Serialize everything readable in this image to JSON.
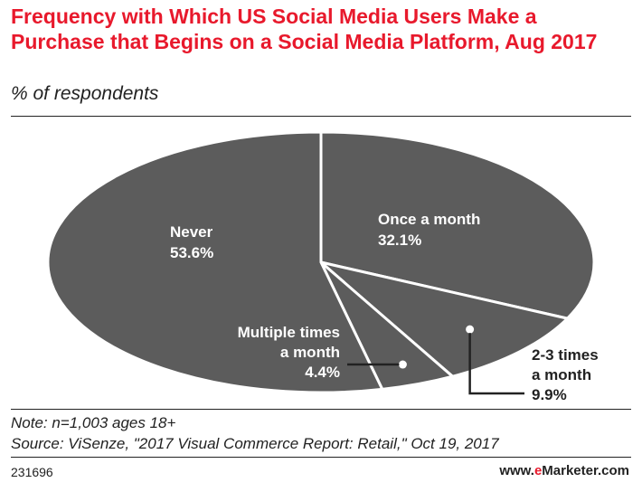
{
  "header": {
    "title": "Frequency with Which US Social Media Users Make a Purchase that Begins on a Social Media Platform, Aug 2017",
    "subtitle": "% of respondents"
  },
  "chart_data": {
    "type": "pie",
    "title": "Frequency with Which US Social Media Users Make a Purchase that Begins on a Social Media Platform, Aug 2017",
    "unit": "% of respondents",
    "slices": [
      {
        "label": "Once a month",
        "value": 32.1,
        "value_text": "32.1%"
      },
      {
        "label": "2-3 times a month",
        "value": 9.9,
        "value_text": "9.9%"
      },
      {
        "label": "Multiple times a month",
        "value": 4.4,
        "value_text": "4.4%"
      },
      {
        "label": "Never",
        "value": 53.6,
        "value_text": "53.6%"
      }
    ],
    "colors": {
      "fill": "#5c5c5c",
      "stroke": "#ffffff",
      "label": "#ffffff",
      "callout": "#222222"
    }
  },
  "footer": {
    "note": "Note: n=1,003 ages 18+",
    "source": "Source: ViSenze, \"2017 Visual Commerce Report: Retail,\" Oct 19, 2017",
    "id": "231696",
    "brand_prefix": "www.",
    "brand_e": "e",
    "brand_rest": "Marketer.com"
  }
}
